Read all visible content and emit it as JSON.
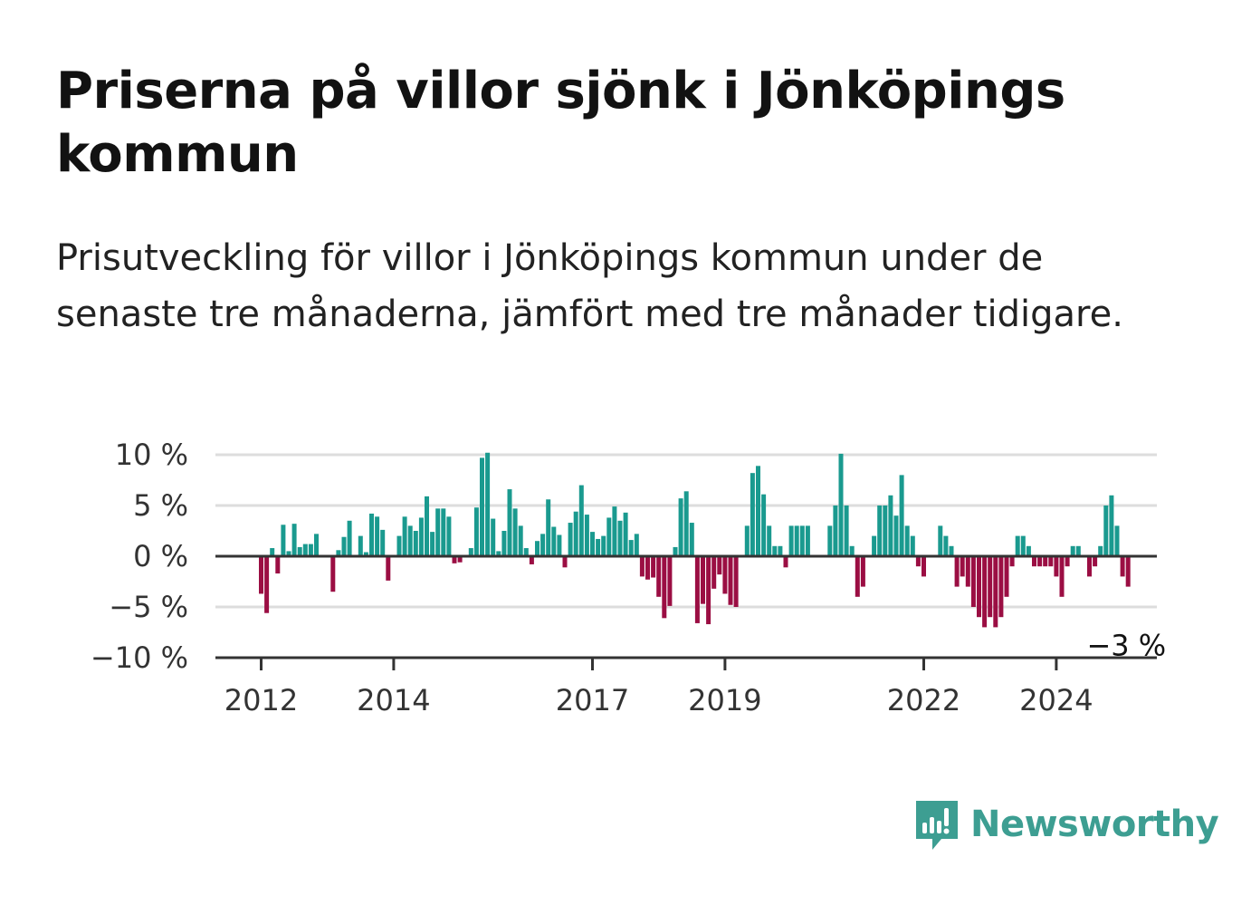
{
  "header": {
    "title": "Priserna på villor sjönk i Jönköpings kommun",
    "subtitle": "Prisutveckling för villor i Jönköpings kommun under de senaste tre månaderna, jämfört med tre månader tidigare."
  },
  "colors": {
    "positive": "#1a9a8f",
    "negative": "#9b0e43",
    "grid": "#dddddd",
    "axis": "#333333",
    "brand": "#3d9e92"
  },
  "brand": {
    "name": "Newsworthy",
    "icon": "bar-chart-speech-icon"
  },
  "chart_data": {
    "type": "bar",
    "title": "",
    "xlabel": "",
    "ylabel": "",
    "ylim": [
      -10,
      10
    ],
    "y_ticks": [
      10,
      5,
      0,
      -5,
      -10
    ],
    "y_tick_labels": [
      "10 %",
      "5 %",
      "0 %",
      "−5 %",
      "−10 %"
    ],
    "x_ticks": [
      "2012",
      "2014",
      "2017",
      "2019",
      "2022",
      "2024"
    ],
    "start_month": "2012-01",
    "grid": true,
    "legend": "none",
    "end_label": "−3 %",
    "values": [
      -3.7,
      -5.6,
      0.8,
      -1.7,
      3.1,
      0.5,
      3.2,
      0.9,
      1.2,
      1.2,
      2.2,
      null,
      null,
      -3.5,
      0.6,
      1.9,
      3.5,
      null,
      2.0,
      0.4,
      4.2,
      3.9,
      2.6,
      -2.4,
      null,
      2.0,
      3.9,
      3.0,
      2.5,
      3.8,
      5.9,
      2.4,
      4.7,
      4.7,
      3.9,
      -0.7,
      -0.6,
      null,
      0.8,
      4.8,
      9.7,
      10.2,
      3.7,
      0.5,
      2.5,
      6.6,
      4.7,
      3.0,
      0.8,
      -0.8,
      1.5,
      2.2,
      5.6,
      2.9,
      2.1,
      -1.1,
      3.3,
      4.4,
      7.0,
      4.1,
      2.4,
      1.7,
      2.0,
      3.8,
      4.9,
      3.5,
      4.3,
      1.6,
      2.2,
      -2.0,
      -2.3,
      -2.1,
      -4.0,
      -6.1,
      -4.9,
      0.9,
      5.7,
      6.4,
      3.3,
      -6.6,
      -4.7,
      -6.7,
      -3.2,
      -1.8,
      -3.7,
      -4.8,
      -5.0,
      null,
      3.0,
      8.2,
      8.9,
      6.1,
      3.0,
      1.0,
      1.0,
      -1.1,
      3.0,
      3.0,
      3.0,
      3.0,
      null,
      null,
      null,
      3.0,
      5.0,
      10.1,
      5.0,
      1.0,
      -4.0,
      -3.0,
      null,
      2.0,
      5.0,
      5.0,
      6.0,
      4.0,
      8.0,
      3.0,
      2.0,
      -1.0,
      -2.0,
      null,
      null,
      3.0,
      2.0,
      1.0,
      -3.0,
      -2.0,
      -3.0,
      -5.0,
      -6.0,
      -7.0,
      -6.0,
      -7.0,
      -6.0,
      -4.0,
      -1.0,
      2.0,
      2.0,
      1.0,
      -1.0,
      -1.0,
      -1.0,
      -1.0,
      -2.0,
      -4.0,
      -1.0,
      1.0,
      1.0,
      null,
      -2.0,
      -1.0,
      1.0,
      5.0,
      6.0,
      3.0,
      -2.0,
      -3.0
    ]
  }
}
